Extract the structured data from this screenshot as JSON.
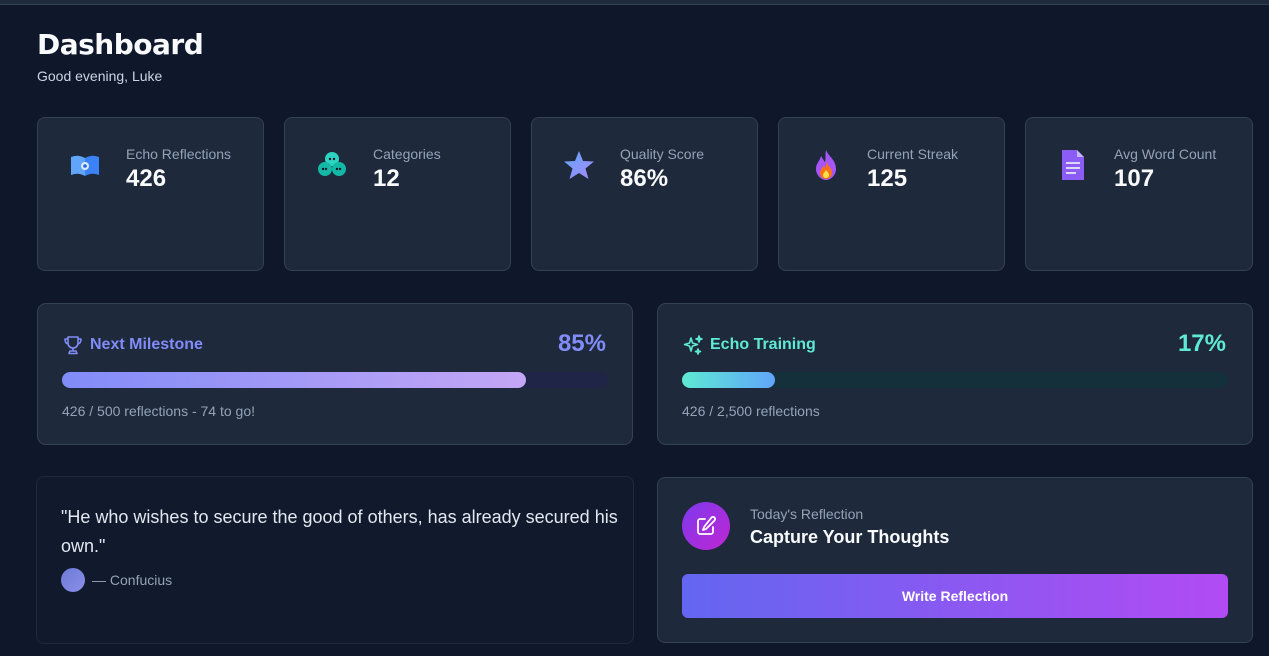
{
  "header": {
    "title": "Dashboard",
    "greeting": "Good evening, Luke"
  },
  "stats": [
    {
      "label": "Echo Reflections",
      "value": "426",
      "icon": "book-icon",
      "color": "#60a5fa"
    },
    {
      "label": "Categories",
      "value": "12",
      "icon": "chat-bubbles-icon",
      "color": "#2dd4bf"
    },
    {
      "label": "Quality Score",
      "value": "86%",
      "icon": "star-icon",
      "color": "#818cf8"
    },
    {
      "label": "Current Streak",
      "value": "125",
      "icon": "fire-icon",
      "color": "#a855f7"
    },
    {
      "label": "Avg Word Count",
      "value": "107",
      "icon": "document-icon",
      "color": "#8b5cf6"
    }
  ],
  "milestone": {
    "title": "Next Milestone",
    "percent_label": "85%",
    "progress": 0.85,
    "note": "426 / 500 reflections - 74 to go!",
    "color": "#818cf8"
  },
  "training": {
    "title": "Echo Training",
    "percent_label": "17%",
    "progress": 0.17,
    "note": "426 / 2,500 reflections",
    "color": "#5eead4"
  },
  "quote": {
    "text": "\"He who wishes to secure the good of others, has already secured his own.\"",
    "author": "— Confucius"
  },
  "reflection": {
    "eyebrow": "Today's Reflection",
    "heading": "Capture Your Thoughts",
    "button_label": "Write Reflection"
  }
}
